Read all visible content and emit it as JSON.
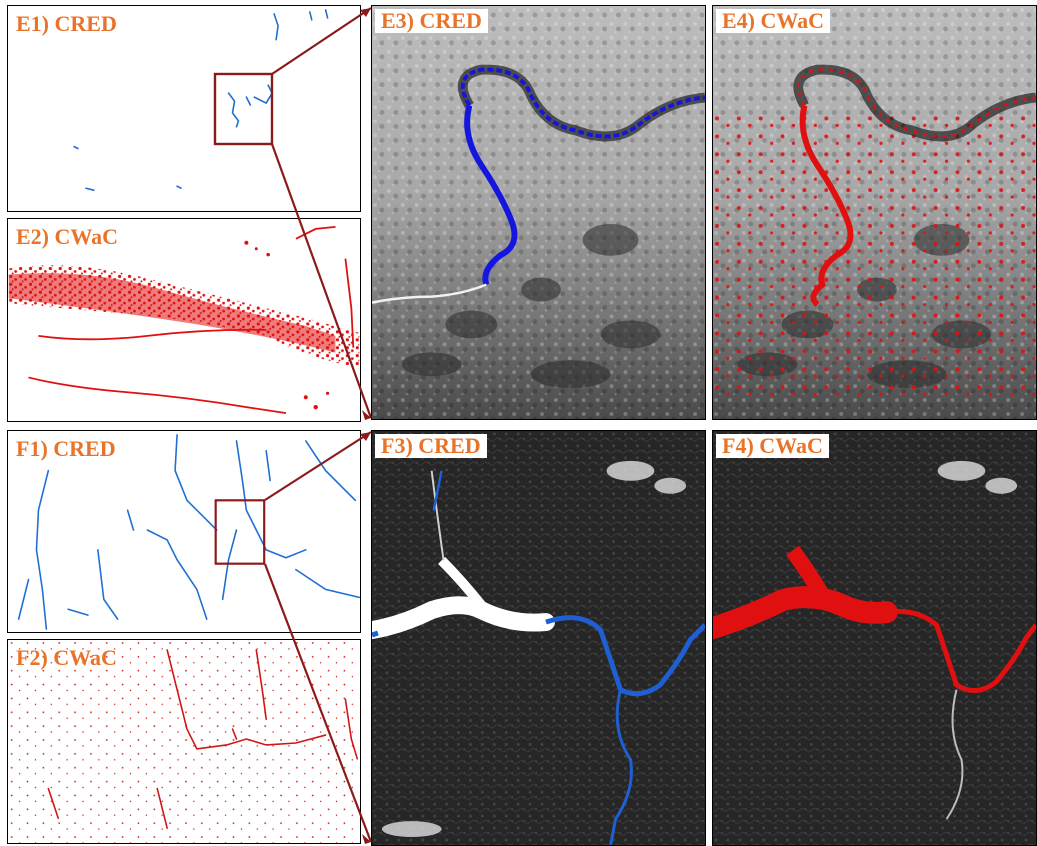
{
  "panels": {
    "e1": {
      "label": "E1) CRED"
    },
    "e2": {
      "label": "E2) CWaC"
    },
    "e3": {
      "label": "E3) CRED"
    },
    "e4": {
      "label": "E4) CWaC"
    },
    "f1": {
      "label": "F1) CRED"
    },
    "f2": {
      "label": "F2) CWaC"
    },
    "f3": {
      "label": "F3) CRED"
    },
    "f4": {
      "label": "F4) CWaC"
    }
  },
  "colors": {
    "label_text": "#e8742a",
    "cred_blue": "#1f5fd1",
    "cwac_red": "#e01010",
    "zoom_box": "#8b1a1a",
    "border": "#000000"
  }
}
